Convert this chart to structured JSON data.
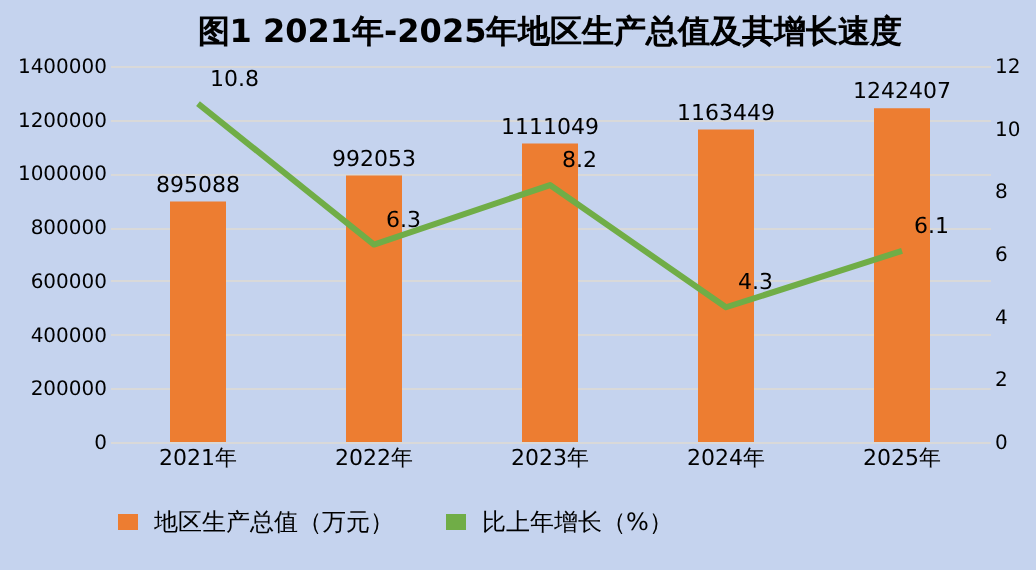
{
  "chart_data": {
    "type": "bar",
    "title": "图1  2021年-2025年地区生产总值及其增长速度",
    "categories": [
      "2021年",
      "2022年",
      "2023年",
      "2024年",
      "2025年"
    ],
    "series": [
      {
        "name": "地区生产总值（万元）",
        "color": "#ed7d31",
        "values": [
          895088,
          992053,
          1111049,
          1163449,
          1242407
        ]
      },
      {
        "name": "比上年增长（%）",
        "type": "line",
        "axis": "y2",
        "color": "#70ad47",
        "values": [
          10.8,
          6.3,
          8.2,
          4.3,
          6.1
        ]
      }
    ],
    "ylim": [
      0,
      1400000
    ],
    "yticks": [
      0,
      200000,
      400000,
      600000,
      800000,
      1000000,
      1200000,
      1400000
    ],
    "y2lim": [
      0,
      12
    ],
    "y2ticks": [
      0,
      2,
      4,
      6,
      8,
      10,
      12
    ],
    "data_labels": true,
    "grid": "y",
    "legend": "bottom",
    "marker": "none"
  }
}
